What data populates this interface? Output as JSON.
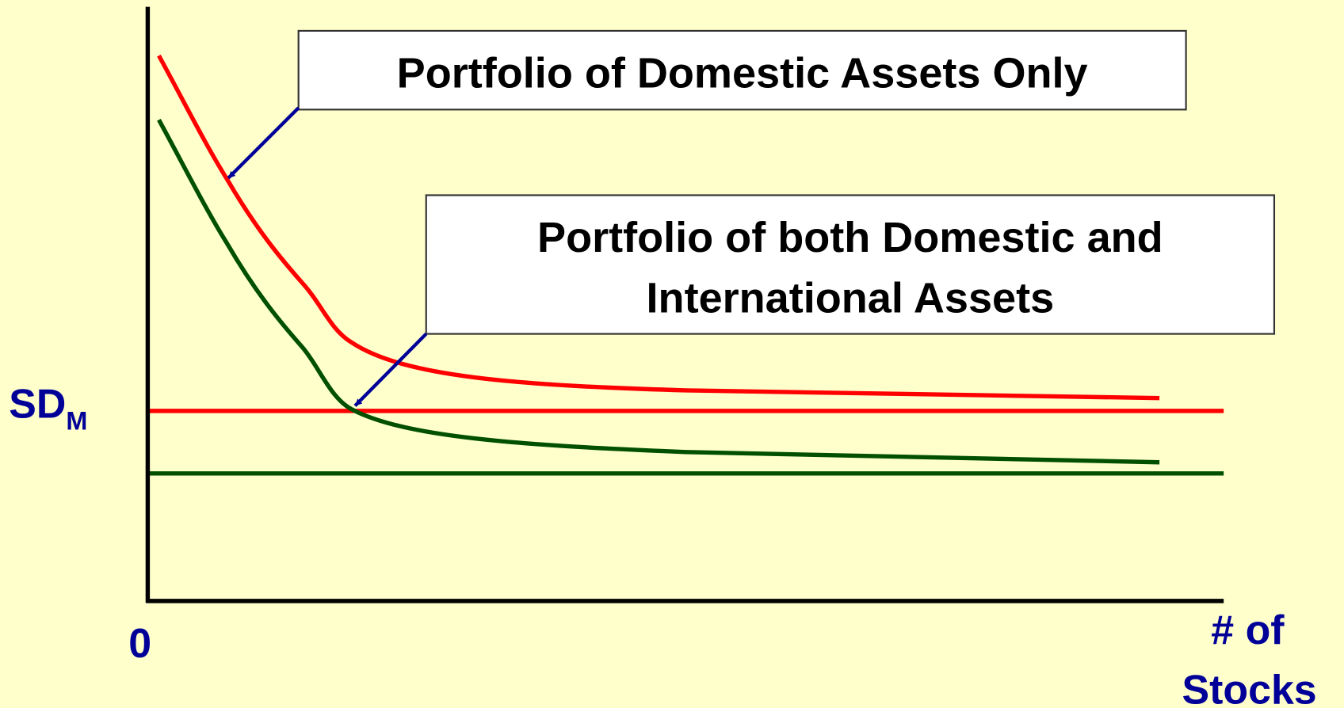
{
  "labels": {
    "domestic": "Portfolio of Domestic Assets Only",
    "international": [
      "Portfolio of both Domestic and",
      "International Assets"
    ],
    "y_axis": {
      "main": "SD",
      "sub": "M"
    },
    "origin": "0",
    "x_axis": [
      "# of",
      "Stocks"
    ]
  }
}
